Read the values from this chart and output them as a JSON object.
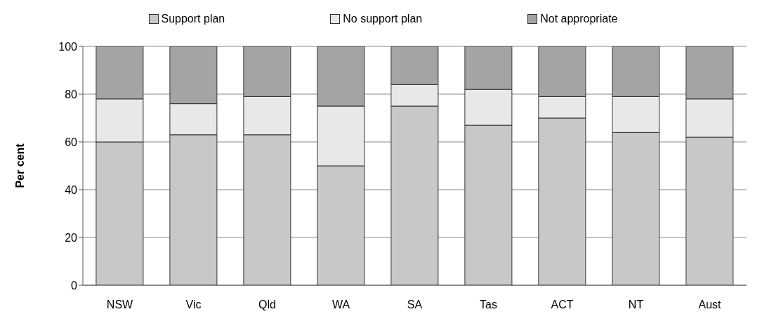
{
  "chart_data": {
    "type": "bar",
    "stacked": true,
    "ylabel": "Per cent",
    "categories": [
      "NSW",
      "Vic",
      "Qld",
      "WA",
      "SA",
      "Tas",
      "ACT",
      "NT",
      "Aust"
    ],
    "series": [
      {
        "name": "Support plan",
        "color": "#c8c8c8",
        "values": [
          60,
          63,
          63,
          50,
          75,
          67,
          70,
          64,
          62
        ]
      },
      {
        "name": "No support plan",
        "color": "#e8e8e8",
        "values": [
          18,
          13,
          16,
          25,
          9,
          15,
          9,
          15,
          16
        ]
      },
      {
        "name": "Not appropriate",
        "color": "#a4a4a4",
        "values": [
          22,
          24,
          21,
          25,
          16,
          18,
          21,
          21,
          22
        ]
      }
    ],
    "ylim": [
      0,
      100
    ],
    "yticks": [
      0,
      20,
      40,
      60,
      80,
      100
    ],
    "grid": "y",
    "legend": "top"
  }
}
